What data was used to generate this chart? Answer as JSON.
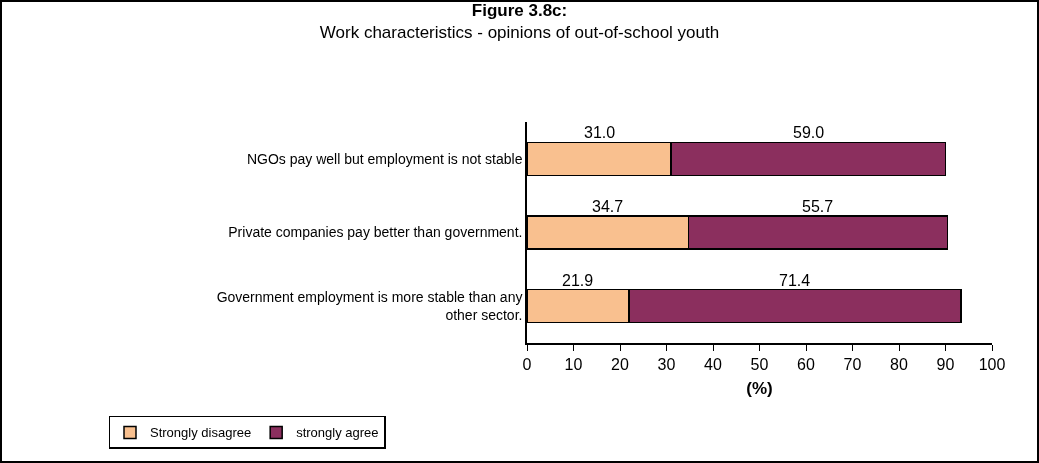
{
  "chart_data": {
    "type": "bar",
    "orientation": "horizontal",
    "stacked": true,
    "title": "Figure 3.8c:",
    "subtitle": "Work characteristics - opinions of out-of-school youth",
    "xlabel": "(%)",
    "categories": [
      "NGOs pay well but employment is not stable",
      "Private companies pay better than government.",
      "Government employment is more stable than any other sector."
    ],
    "series": [
      {
        "name": "Strongly disagree",
        "color": "#f9c08f",
        "values": [
          31.0,
          34.7,
          21.9
        ],
        "value_labels": [
          "31.0",
          "34.7",
          "21.9"
        ]
      },
      {
        "name": "strongly agree",
        "color": "#8b2f5e",
        "values": [
          59.0,
          55.7,
          71.4
        ],
        "value_labels": [
          "59.0",
          "55.7",
          "71.4"
        ]
      }
    ],
    "xlim": [
      0,
      100
    ],
    "xticks": [
      0,
      10,
      20,
      30,
      40,
      50,
      60,
      70,
      80,
      90,
      100
    ],
    "grid": false,
    "legend": "bottom left"
  }
}
